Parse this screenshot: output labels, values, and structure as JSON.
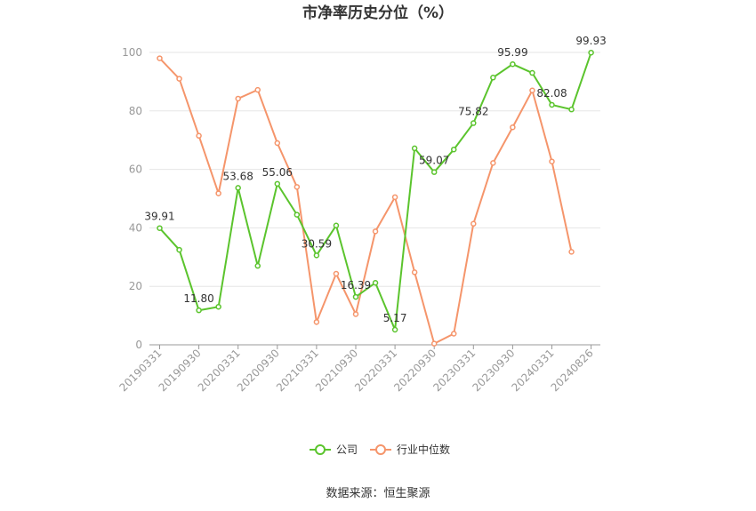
{
  "chart_data": {
    "type": "line",
    "title": "市净率历史分位（%）",
    "xlabel": "",
    "ylabel": "",
    "ylim": [
      0,
      100
    ],
    "y_ticks": [
      0,
      20,
      40,
      60,
      80,
      100
    ],
    "x": [
      "20190331",
      "20190630",
      "20190930",
      "20191231",
      "20200331",
      "20200630",
      "20200930",
      "20201231",
      "20210331",
      "20210630",
      "20210930",
      "20211231",
      "20220331",
      "20220630",
      "20220930",
      "20221231",
      "20230331",
      "20230630",
      "20230930",
      "20231231",
      "20240331",
      "20240630",
      "20240826"
    ],
    "x_tick_labels": [
      "20190331",
      "20190930",
      "20200331",
      "20200930",
      "20210331",
      "20210930",
      "20220331",
      "20220930",
      "20230331",
      "20230930",
      "20240331",
      "20240826"
    ],
    "x_tick_indices": [
      0,
      2,
      4,
      6,
      8,
      10,
      12,
      14,
      16,
      18,
      20,
      22
    ],
    "grid": true,
    "legend_position": "bottom",
    "series": [
      {
        "name": "公司",
        "color": "#5bc42d",
        "values": [
          39.91,
          32.5,
          11.8,
          13.0,
          53.68,
          27.0,
          55.06,
          44.5,
          30.59,
          40.8,
          16.39,
          21.2,
          5.17,
          67.2,
          59.07,
          66.8,
          75.82,
          91.4,
          95.99,
          93.0,
          82.08,
          80.5,
          99.93
        ],
        "labels": {
          "0": "39.91",
          "2": "11.80",
          "4": "53.68",
          "6": "55.06",
          "8": "30.59",
          "10": "16.39",
          "12": "5.17",
          "14": "59.07",
          "16": "75.82",
          "18": "95.99",
          "20": "82.08",
          "22": "99.93"
        }
      },
      {
        "name": "行业中位数",
        "color": "#f5956b",
        "values": [
          98.0,
          91.0,
          71.5,
          51.8,
          84.2,
          87.2,
          69.0,
          54.0,
          7.8,
          24.3,
          10.5,
          38.8,
          50.5,
          24.8,
          0.4,
          3.8,
          41.4,
          62.2,
          74.4,
          87.0,
          62.7,
          31.8,
          null
        ]
      }
    ],
    "source": "数据来源：恒生聚源"
  }
}
